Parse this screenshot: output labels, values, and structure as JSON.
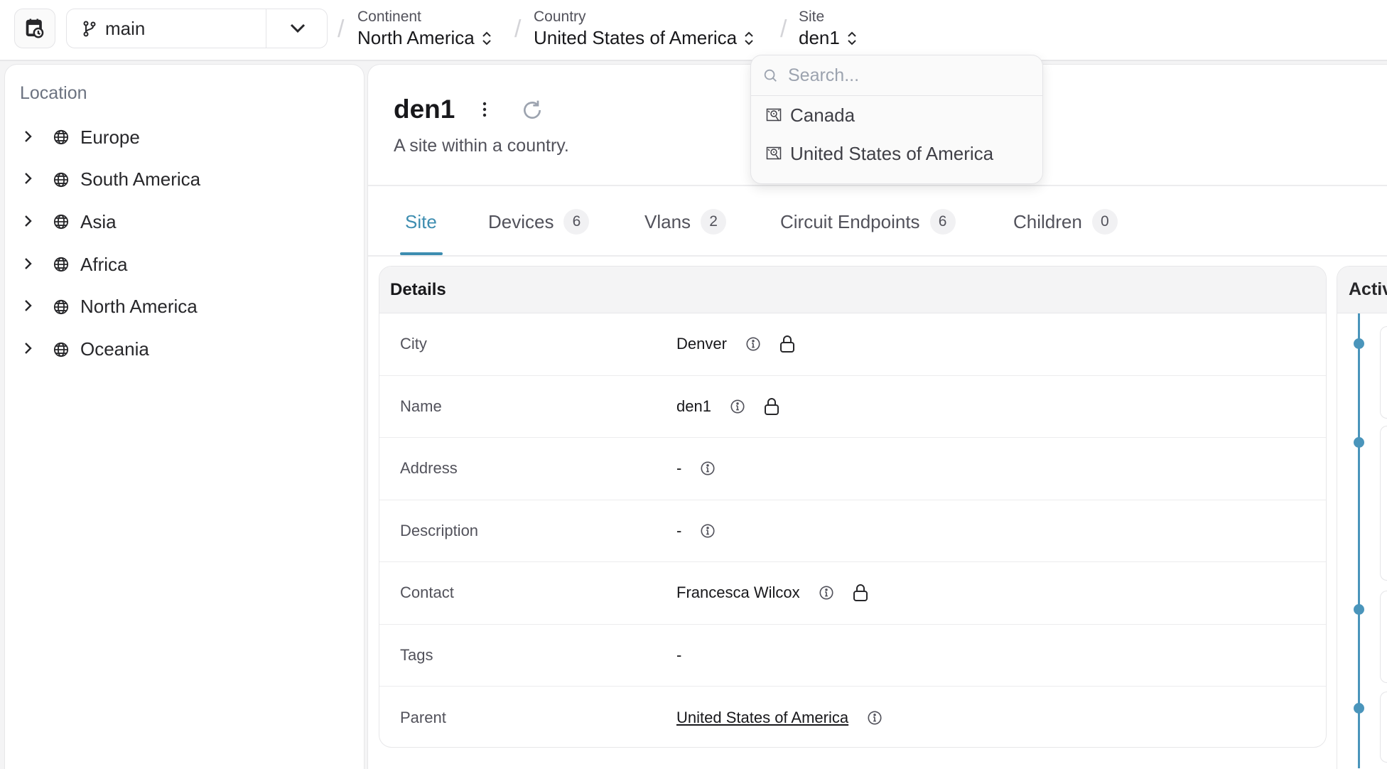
{
  "topbar": {
    "branch": "main",
    "breadcrumbs": [
      {
        "label": "Continent",
        "value": "North America"
      },
      {
        "label": "Country",
        "value": "United States of America"
      },
      {
        "label": "Site",
        "value": "den1"
      }
    ]
  },
  "sidebar": {
    "title": "Location",
    "items": [
      {
        "label": "Europe"
      },
      {
        "label": "South America"
      },
      {
        "label": "Asia"
      },
      {
        "label": "Africa"
      },
      {
        "label": "North America"
      },
      {
        "label": "Oceania"
      }
    ]
  },
  "main": {
    "title": "den1",
    "subtitle": "A site within a country.",
    "tabs": [
      {
        "label": "Site",
        "active": true
      },
      {
        "label": "Devices",
        "count": "6"
      },
      {
        "label": "Vlans",
        "count": "2"
      },
      {
        "label": "Circuit Endpoints",
        "count": "6"
      },
      {
        "label": "Children",
        "count": "0"
      }
    ]
  },
  "details": {
    "title": "Details",
    "rows": [
      {
        "label": "City",
        "value": "Denver"
      },
      {
        "label": "Name",
        "value": "den1"
      },
      {
        "label": "Address",
        "value": "-"
      },
      {
        "label": "Description",
        "value": "-"
      },
      {
        "label": "Contact",
        "value": "Francesca Wilcox"
      },
      {
        "label": "Tags",
        "value": "-"
      },
      {
        "label": "Parent",
        "value": "United States of America"
      }
    ]
  },
  "activity": {
    "title": "Activity"
  },
  "dropdown": {
    "placeholder": "Search...",
    "options": [
      {
        "label": "Canada"
      },
      {
        "label": "United States of America"
      }
    ]
  },
  "colors": {
    "accent": "#3d8db0",
    "timeline": "#4a95bb"
  }
}
